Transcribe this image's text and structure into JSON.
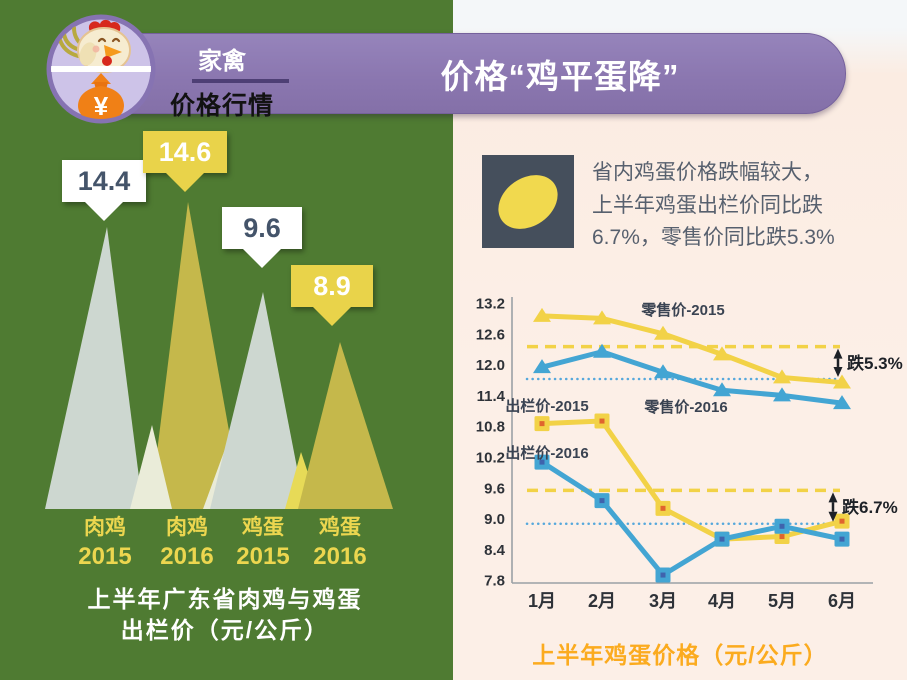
{
  "header": {
    "badge": {
      "top_label": "家禽",
      "bottom_label": "价格行情",
      "money_symbol": "¥"
    },
    "title": "价格“鸡平蛋降”"
  },
  "left_panel": {
    "caption_line1": "上半年广东省肉鸡与鸡蛋",
    "caption_line2": "出栏价（元/公斤）"
  },
  "right_panel": {
    "note_line1": "省内鸡蛋价格跌幅较大，",
    "note_line2": "上半年鸡蛋出栏价同比跌",
    "note_line3": "6.7%，零售价同比跌5.3%",
    "chart_title": "上半年鸡蛋价格（元/公斤）"
  },
  "chart_data": [
    {
      "type": "bar",
      "style": "triangle-pictograph",
      "title": "上半年广东省肉鸡与鸡蛋出栏价（元/公斤）",
      "categories_line1": [
        "肉鸡",
        "肉鸡",
        "鸡蛋",
        "鸡蛋"
      ],
      "categories_line2": [
        "2015",
        "2016",
        "2015",
        "2016"
      ],
      "values": [
        "14.4",
        "14.6",
        "9.6",
        "8.9"
      ],
      "bar_colors": [
        "#cdd7d0",
        "#c5b84b",
        "#cdd7d0",
        "#c5b84b"
      ]
    },
    {
      "type": "line",
      "title": "上半年鸡蛋价格（元/公斤）",
      "x_labels": [
        "1月",
        "2月",
        "3月",
        "4月",
        "5月",
        "6月"
      ],
      "y_ticks": [
        "13.2",
        "12.6",
        "12.0",
        "11.4",
        "10.8",
        "10.2",
        "9.6",
        "9.0",
        "8.4",
        "7.8"
      ],
      "ylim": [
        7.8,
        13.2
      ],
      "legend_position": "inline-labels",
      "grid": false,
      "series": [
        {
          "name": "零售价-2015",
          "color": "#f2d247",
          "marker": "triangle",
          "values": [
            12.95,
            12.9,
            12.6,
            12.2,
            11.75,
            11.65
          ]
        },
        {
          "name": "零售价-2016",
          "color": "#43a5d3",
          "marker": "triangle",
          "values": [
            11.95,
            12.25,
            11.85,
            11.5,
            11.4,
            11.25
          ]
        },
        {
          "name": "出栏价-2015",
          "color": "#f2d247",
          "marker": "square",
          "marker_dot": "#e0642e",
          "values": [
            10.85,
            10.9,
            9.2,
            8.6,
            8.65,
            8.95
          ]
        },
        {
          "name": "出栏价-2016",
          "color": "#43a5d3",
          "marker": "square",
          "marker_dot": "#3f63ad",
          "values": [
            10.1,
            9.35,
            7.9,
            8.6,
            8.85,
            8.6
          ]
        }
      ],
      "reference_lines": [
        {
          "value": 12.35,
          "color": "#f2d247",
          "style": "dashed"
        },
        {
          "value": 11.72,
          "color": "#56a8dc",
          "style": "dotted"
        },
        {
          "value": 9.55,
          "color": "#f2d247",
          "style": "dashed"
        },
        {
          "value": 8.9,
          "color": "#56a8dc",
          "style": "dotted"
        }
      ],
      "annotations": [
        {
          "text": "跌5.3%",
          "from": 12.35,
          "to": 11.72
        },
        {
          "text": "跌6.7%",
          "from": 9.55,
          "to": 8.9
        }
      ]
    }
  ]
}
